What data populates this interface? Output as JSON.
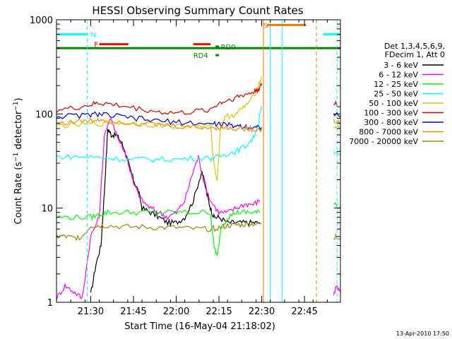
{
  "chart_data": {
    "type": "line",
    "title": "HESSI Observing Summary Count Rates",
    "ylabel": "Count Rate (s⁻¹ detector⁻¹)",
    "ylabel_main": "Count Rate (s",
    "ylabel_sup1": "−1",
    "ylabel_mid": " detector",
    "ylabel_sup2": "−1",
    "ylabel_end": ")",
    "xlabel": "Start Time (16-May-04 21:18:02)",
    "footer": "13-Apr-2010 17:50",
    "yscale": "log",
    "ylim": [
      1,
      1000
    ],
    "xlim_minutes": [
      21.3,
      22.96
    ],
    "y_ticks": [
      "1",
      "10",
      "100",
      "1000"
    ],
    "x_ticks": [
      {
        "label": "21:30",
        "minutes": 21.5
      },
      {
        "label": "21:45",
        "minutes": 21.75
      },
      {
        "label": "22:00",
        "minutes": 22.0
      },
      {
        "label": "22:15",
        "minutes": 22.25
      },
      {
        "label": "22:30",
        "minutes": 22.5
      },
      {
        "label": "22:45",
        "minutes": 22.75
      }
    ],
    "legend": {
      "placement": "right",
      "header1": "Det 1,3,4,5,6,9,",
      "header2": "FDecim 1, Att 0"
    },
    "series": [
      {
        "name": "3 - 6 keV",
        "color": "#000000",
        "segments": [
          [
            [
              21.5,
              1.2
            ],
            [
              21.53,
              2.5
            ],
            [
              21.56,
              4
            ],
            [
              21.58,
              15
            ],
            [
              21.6,
              70
            ],
            [
              21.62,
              60
            ],
            [
              21.65,
              60
            ],
            [
              21.68,
              50
            ],
            [
              21.7,
              40
            ],
            [
              21.72,
              30
            ],
            [
              21.75,
              20
            ],
            [
              21.78,
              15
            ],
            [
              21.8,
              10
            ],
            [
              21.85,
              9
            ],
            [
              21.9,
              8
            ],
            [
              21.95,
              7
            ],
            [
              22.0,
              7
            ],
            [
              22.05,
              8
            ],
            [
              22.1,
              12
            ],
            [
              22.15,
              25
            ],
            [
              22.18,
              14
            ],
            [
              22.2,
              10
            ],
            [
              22.22,
              8
            ],
            [
              22.25,
              8
            ],
            [
              22.3,
              7
            ],
            [
              22.35,
              7
            ],
            [
              22.4,
              7
            ],
            [
              22.45,
              7
            ],
            [
              22.49,
              7
            ]
          ]
        ]
      },
      {
        "name": "6 - 12 keV",
        "color": "#ff00ff",
        "segments": [
          [
            [
              21.3,
              1.1
            ],
            [
              21.35,
              1.5
            ],
            [
              21.4,
              1.3
            ],
            [
              21.45,
              1.1
            ],
            [
              21.5,
              5
            ],
            [
              21.55,
              8
            ],
            [
              21.58,
              60
            ],
            [
              21.62,
              90
            ],
            [
              21.66,
              55
            ],
            [
              21.7,
              40
            ],
            [
              21.72,
              30
            ],
            [
              21.75,
              18
            ],
            [
              21.8,
              12
            ],
            [
              21.85,
              10
            ],
            [
              21.9,
              9
            ],
            [
              21.95,
              8
            ],
            [
              22.0,
              9
            ],
            [
              22.05,
              12
            ],
            [
              22.1,
              25
            ],
            [
              22.13,
              35
            ],
            [
              22.16,
              20
            ],
            [
              22.2,
              12
            ],
            [
              22.25,
              9
            ],
            [
              22.3,
              9
            ],
            [
              22.35,
              10
            ],
            [
              22.4,
              11
            ],
            [
              22.45,
              11
            ],
            [
              22.49,
              12
            ]
          ],
          [
            [
              22.92,
              1.2
            ],
            [
              22.94,
              1.5
            ],
            [
              22.96,
              1.3
            ]
          ]
        ]
      },
      {
        "name": "12 - 25 keV",
        "color": "#00ff00",
        "segments": [
          [
            [
              21.3,
              8
            ],
            [
              21.4,
              8
            ],
            [
              21.5,
              8
            ],
            [
              21.55,
              8.5
            ],
            [
              21.6,
              9
            ],
            [
              21.7,
              9
            ],
            [
              21.8,
              9
            ],
            [
              21.9,
              9
            ],
            [
              22.0,
              9
            ],
            [
              22.1,
              9
            ],
            [
              22.2,
              9
            ],
            [
              22.22,
              4
            ],
            [
              22.24,
              3
            ],
            [
              22.26,
              6
            ],
            [
              22.3,
              8
            ],
            [
              22.35,
              9
            ],
            [
              22.4,
              9
            ],
            [
              22.45,
              9
            ],
            [
              22.49,
              9
            ]
          ],
          [
            [
              22.92,
              11
            ],
            [
              22.96,
              10
            ]
          ]
        ]
      },
      {
        "name": "25 - 50 keV",
        "color": "#00ffff",
        "segments": [
          [
            [
              21.3,
              35
            ],
            [
              21.4,
              35
            ],
            [
              21.5,
              35
            ],
            [
              21.6,
              34
            ],
            [
              21.7,
              33
            ],
            [
              21.8,
              33
            ],
            [
              21.9,
              33
            ],
            [
              22.0,
              33
            ],
            [
              22.1,
              34
            ],
            [
              22.2,
              34
            ],
            [
              22.25,
              35
            ],
            [
              22.3,
              38
            ],
            [
              22.35,
              40
            ],
            [
              22.4,
              45
            ],
            [
              22.45,
              55
            ],
            [
              22.48,
              80
            ],
            [
              22.5,
              120
            ]
          ],
          [
            [
              22.92,
              38
            ],
            [
              22.96,
              37
            ]
          ]
        ]
      },
      {
        "name": "50 - 100 keV",
        "color": "#cccc00",
        "segments": [
          [
            [
              21.3,
              75
            ],
            [
              21.4,
              76
            ],
            [
              21.5,
              78
            ],
            [
              21.6,
              80
            ],
            [
              21.7,
              80
            ],
            [
              21.8,
              78
            ],
            [
              21.9,
              76
            ],
            [
              22.0,
              75
            ],
            [
              22.1,
              74
            ],
            [
              22.2,
              75
            ],
            [
              22.22,
              30
            ],
            [
              22.24,
              20
            ],
            [
              22.26,
              80
            ],
            [
              22.3,
              95
            ],
            [
              22.35,
              100
            ],
            [
              22.4,
              120
            ],
            [
              22.45,
              150
            ],
            [
              22.48,
              200
            ],
            [
              22.5,
              250
            ]
          ],
          [
            [
              22.92,
              75
            ],
            [
              22.96,
              70
            ]
          ]
        ]
      },
      {
        "name": "100 - 300 keV",
        "color": "#dd0000",
        "segments": [
          [
            [
              21.3,
              110
            ],
            [
              21.4,
              115
            ],
            [
              21.5,
              125
            ],
            [
              21.55,
              130
            ],
            [
              21.6,
              128
            ],
            [
              21.7,
              120
            ],
            [
              21.8,
              112
            ],
            [
              21.9,
              105
            ],
            [
              22.0,
              102
            ],
            [
              22.1,
              105
            ],
            [
              22.2,
              112
            ],
            [
              22.25,
              130
            ],
            [
              22.3,
              140
            ],
            [
              22.35,
              150
            ],
            [
              22.4,
              160
            ],
            [
              22.45,
              170
            ],
            [
              22.48,
              185
            ],
            [
              22.5,
              200
            ]
          ],
          [
            [
              22.92,
              130
            ],
            [
              22.96,
              120
            ]
          ]
        ]
      },
      {
        "name": "300 - 800 keV",
        "color": "#0000dd",
        "segments": [
          [
            [
              21.3,
              95
            ],
            [
              21.4,
              95
            ],
            [
              21.5,
              98
            ],
            [
              21.55,
              100
            ],
            [
              21.6,
              97
            ],
            [
              21.7,
              92
            ],
            [
              21.8,
              88
            ],
            [
              21.9,
              84
            ],
            [
              22.0,
              82
            ],
            [
              22.1,
              80
            ],
            [
              22.2,
              78
            ],
            [
              22.25,
              78
            ],
            [
              22.3,
              76
            ],
            [
              22.35,
              75
            ],
            [
              22.4,
              74
            ],
            [
              22.45,
              72
            ],
            [
              22.5,
              72
            ]
          ],
          [
            [
              22.92,
              100
            ],
            [
              22.96,
              95
            ]
          ]
        ]
      },
      {
        "name": "800 - 7000 keV",
        "color": "#ff8800",
        "segments": [
          [
            [
              21.3,
              80
            ],
            [
              21.4,
              82
            ],
            [
              21.5,
              85
            ],
            [
              21.55,
              88
            ],
            [
              21.6,
              86
            ],
            [
              21.7,
              82
            ],
            [
              21.8,
              79
            ],
            [
              21.9,
              76
            ],
            [
              22.0,
              74
            ],
            [
              22.1,
              72
            ],
            [
              22.2,
              72
            ],
            [
              22.25,
              72
            ],
            [
              22.3,
              71
            ],
            [
              22.35,
              70
            ],
            [
              22.4,
              70
            ],
            [
              22.45,
              69
            ],
            [
              22.5,
              68
            ]
          ],
          [
            [
              22.92,
              85
            ],
            [
              22.96,
              80
            ]
          ]
        ]
      },
      {
        "name": "7000 - 20000 keV",
        "color": "#998800",
        "segments": [
          [
            [
              21.3,
              5
            ],
            [
              21.35,
              5
            ],
            [
              21.4,
              4.8
            ],
            [
              21.45,
              5
            ],
            [
              21.5,
              6.5
            ],
            [
              21.55,
              6.5
            ],
            [
              21.6,
              6.5
            ],
            [
              21.7,
              6.3
            ],
            [
              21.8,
              6.3
            ],
            [
              21.9,
              6.2
            ],
            [
              22.0,
              6.2
            ],
            [
              22.1,
              6.0
            ],
            [
              22.2,
              6.0
            ],
            [
              22.25,
              6.2
            ],
            [
              22.3,
              6.5
            ],
            [
              22.35,
              6.6
            ],
            [
              22.4,
              6.7
            ],
            [
              22.45,
              6.8
            ],
            [
              22.5,
              6.8
            ]
          ],
          [
            [
              22.92,
              5
            ],
            [
              22.96,
              4.8
            ]
          ]
        ]
      }
    ],
    "annotations": {
      "flags": [
        {
          "label": "N",
          "color": "#00ffff",
          "y": 700,
          "start": 21.3,
          "end": 21.48,
          "label_at": 21.5
        },
        {
          "label": "N",
          "color": "#00ffff",
          "y": 700,
          "start": 22.86,
          "end": 22.96,
          "label_at": null
        },
        {
          "label": "F",
          "color": "#ff0000",
          "y": 550,
          "start": 21.55,
          "end": 21.72,
          "label_at": 21.52
        },
        {
          "label": "",
          "color": "#ff0000",
          "y": 550,
          "start": 22.1,
          "end": 22.2,
          "label_at": null
        },
        {
          "label": "S",
          "color": "#ee7700",
          "y": 880,
          "start": 22.53,
          "end": 22.76,
          "label_at": 22.51
        },
        {
          "label": "RD0",
          "color": "#008800",
          "y": 520,
          "start": 22.23,
          "end": 22.25,
          "label_at": 22.26
        },
        {
          "label": "RD4",
          "color": "#008800",
          "y": 420,
          "start": 22.23,
          "end": 22.25,
          "label_at": 22.1
        }
      ],
      "baseline": {
        "color": "#008800",
        "y": 500
      },
      "vlines": [
        {
          "x": 21.48,
          "color": "#00ffff",
          "dash": true
        },
        {
          "x": 22.51,
          "color": "#ee7700",
          "dash": false
        },
        {
          "x": 22.55,
          "color": "#00ffff",
          "dash": false
        },
        {
          "x": 22.62,
          "color": "#00ffff",
          "dash": false
        },
        {
          "x": 22.82,
          "color": "#ee7700",
          "dash": true
        },
        {
          "x": 22.94,
          "color": "#00ffff",
          "dash": true
        }
      ]
    }
  }
}
